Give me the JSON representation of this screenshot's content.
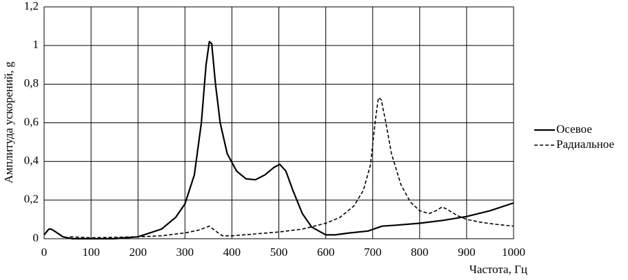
{
  "chart_data": {
    "type": "line",
    "xlabel": "Частота, Гц",
    "ylabel": "Амплитуда ускорений, g",
    "xlim": [
      0,
      1000
    ],
    "xticks": [
      0,
      100,
      200,
      300,
      400,
      500,
      600,
      700,
      800,
      900,
      1000
    ],
    "ylim": [
      0,
      1.2
    ],
    "yticks": [
      0,
      {
        "value": 0.2,
        "label": "0,2"
      },
      {
        "value": 0.4,
        "label": "0,4"
      },
      {
        "value": 0.6,
        "label": "0,6"
      },
      {
        "value": 0.8,
        "label": "0,8"
      },
      1,
      {
        "value": 1.2,
        "label": "1,2"
      }
    ],
    "grid": true,
    "legend": "right",
    "series": [
      {
        "name": "Осевое",
        "color": "#000000",
        "dash": "solid",
        "x": [
          0,
          10,
          15,
          25,
          40,
          60,
          100,
          150,
          200,
          250,
          280,
          300,
          320,
          335,
          345,
          352,
          357,
          365,
          375,
          390,
          410,
          430,
          450,
          470,
          490,
          502,
          515,
          530,
          550,
          570,
          600,
          620,
          650,
          690,
          720,
          750,
          800,
          850,
          900,
          950,
          1000
        ],
        "values": [
          0.02,
          0.05,
          0.05,
          0.035,
          0.01,
          0,
          0,
          0,
          0.01,
          0.05,
          0.11,
          0.18,
          0.33,
          0.6,
          0.9,
          1.02,
          1.01,
          0.8,
          0.6,
          0.44,
          0.35,
          0.31,
          0.305,
          0.33,
          0.37,
          0.385,
          0.35,
          0.25,
          0.13,
          0.06,
          0.02,
          0.02,
          0.03,
          0.04,
          0.065,
          0.07,
          0.08,
          0.095,
          0.115,
          0.145,
          0.185
        ]
      },
      {
        "name": "Радиальное",
        "color": "#000000",
        "dash": "dashed",
        "x": [
          55,
          100,
          200,
          250,
          300,
          330,
          352,
          365,
          380,
          400,
          450,
          500,
          550,
          600,
          630,
          660,
          680,
          695,
          705,
          712,
          718,
          728,
          740,
          760,
          780,
          800,
          820,
          835,
          848,
          860,
          880,
          900,
          930,
          960,
          1000
        ],
        "values": [
          0.01,
          0.005,
          0.01,
          0.015,
          0.03,
          0.045,
          0.065,
          0.04,
          0.015,
          0.015,
          0.025,
          0.035,
          0.05,
          0.08,
          0.11,
          0.17,
          0.25,
          0.38,
          0.6,
          0.73,
          0.72,
          0.6,
          0.44,
          0.28,
          0.19,
          0.145,
          0.13,
          0.145,
          0.165,
          0.15,
          0.12,
          0.1,
          0.085,
          0.075,
          0.065
        ]
      }
    ]
  }
}
